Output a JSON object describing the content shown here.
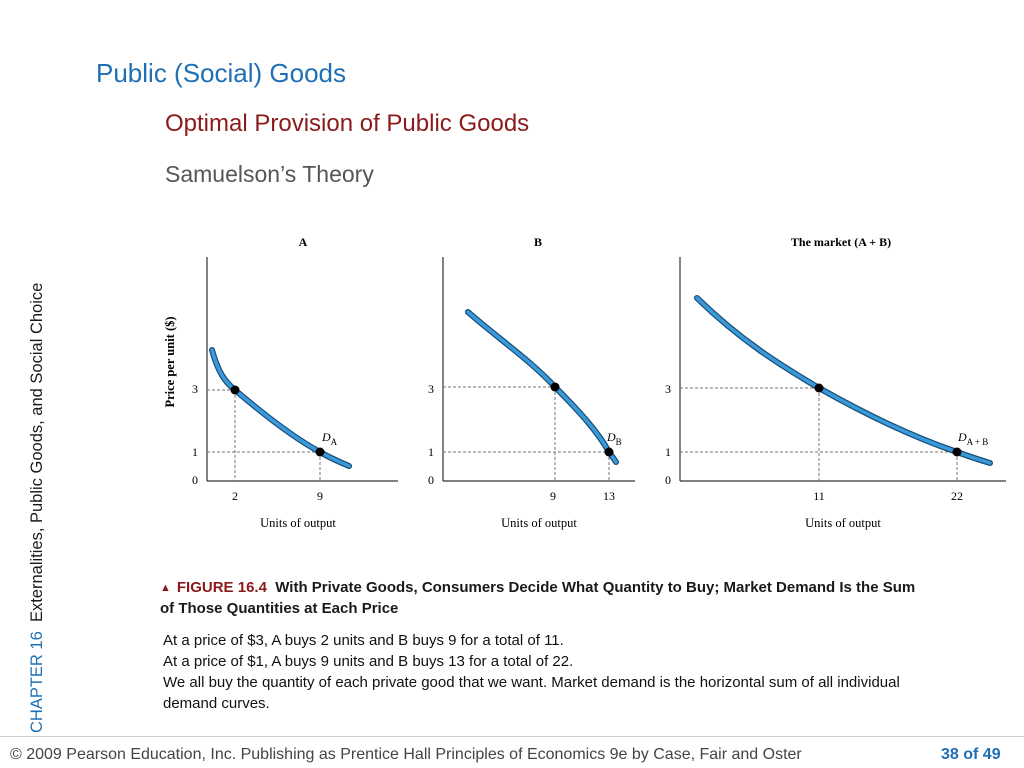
{
  "slide": {
    "title": "Public (Social) Goods",
    "subtitle": "Optimal Provision of Public Goods",
    "subsubtitle": "Samuelson’s Theory",
    "sidebar_chapter": "CHAPTER 16",
    "sidebar_text": "Externalities, Public Goods, and Social Choice",
    "figure_label": "FIGURE 16.4",
    "figure_caption": "With Private Goods, Consumers Decide What Quantity to Buy; Market Demand Is the Sum of Those Quantities at Each Price",
    "body_lines": [
      "At a price of $3, A buys 2 units and B buys 9 for a total of 11.",
      "At a price of $1, A buys 9 units and B buys 13 for a total of 22.",
      "We all buy the quantity of each private good that we want. Market demand is the horizontal sum of all individual demand curves."
    ],
    "footer_left": "© 2009 Pearson Education, Inc. Publishing as Prentice Hall   Principles of Economics 9e by Case, Fair and Oster",
    "footer_right": "38 of 49"
  },
  "colors": {
    "title": "#1f6fb5",
    "subtitle": "#8b1a1a",
    "curve": "#3a9ad9",
    "curve_outline": "#1a4f7a"
  },
  "chart_data": [
    {
      "type": "line",
      "title": "A",
      "ylabel": "Price per unit ($)",
      "xlabel": "Units of output",
      "y_ticks": [
        "0",
        "1",
        "3"
      ],
      "x_ticks": [
        "2",
        "9"
      ],
      "curve_label": "D",
      "curve_label_sub": "A",
      "points": [
        {
          "x": 2,
          "y": 3
        },
        {
          "x": 9,
          "y": 1
        }
      ]
    },
    {
      "type": "line",
      "title": "B",
      "ylabel": "",
      "xlabel": "Units of output",
      "y_ticks": [
        "0",
        "1",
        "3"
      ],
      "x_ticks": [
        "9",
        "13"
      ],
      "curve_label": "D",
      "curve_label_sub": "B",
      "points": [
        {
          "x": 9,
          "y": 3
        },
        {
          "x": 13,
          "y": 1
        }
      ]
    },
    {
      "type": "line",
      "title": "The market (A + B)",
      "ylabel": "",
      "xlabel": "Units of output",
      "y_ticks": [
        "0",
        "1",
        "3"
      ],
      "x_ticks": [
        "11",
        "22"
      ],
      "curve_label": "D",
      "curve_label_sub": "A + B",
      "points": [
        {
          "x": 11,
          "y": 3
        },
        {
          "x": 22,
          "y": 1
        }
      ]
    }
  ]
}
